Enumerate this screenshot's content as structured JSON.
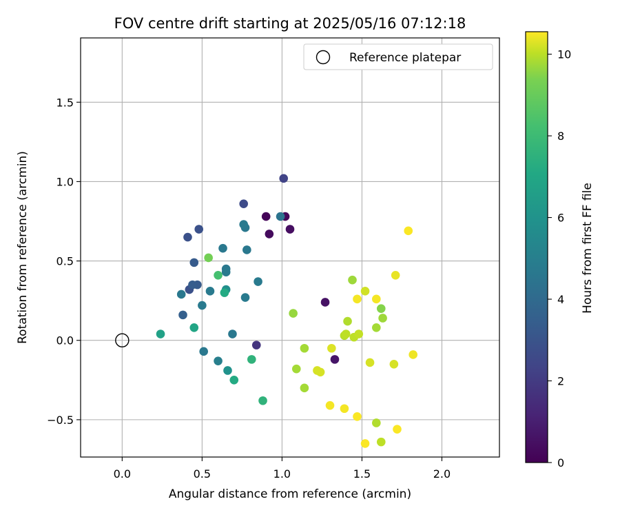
{
  "chart_data": {
    "type": "scatter",
    "title": "FOV centre drift starting at 2025/05/16 07:12:18",
    "xlabel": "Angular distance from reference (arcmin)",
    "ylabel": "Rotation from reference (arcmin)",
    "xlim": [
      -0.26,
      2.36
    ],
    "ylim": [
      -0.735,
      1.905
    ],
    "xticks": [
      0.0,
      0.5,
      1.0,
      1.5,
      2.0
    ],
    "xtick_labels": [
      "0.0",
      "0.5",
      "1.0",
      "1.5",
      "2.0"
    ],
    "yticks": [
      -0.5,
      0.0,
      0.5,
      1.0,
      1.5
    ],
    "ytick_labels": [
      "−0.5",
      "0.0",
      "0.5",
      "1.0",
      "1.5"
    ],
    "grid": true,
    "legend": {
      "placement": "top-right",
      "entries": [
        "Reference platepar"
      ]
    },
    "reference_point": {
      "x": 0.0,
      "y": 0.0,
      "marker": "hollow-circle"
    },
    "colorbar": {
      "label": "Hours from first FF file",
      "min": 0,
      "max": 10.55,
      "ticks": [
        0,
        2,
        4,
        6,
        8,
        10
      ],
      "tick_labels": [
        "0",
        "2",
        "4",
        "6",
        "8",
        "10"
      ],
      "colormap": "viridis"
    },
    "points": [
      {
        "x": 0.9,
        "y": 0.78,
        "hours": 0.1
      },
      {
        "x": 1.02,
        "y": 0.78,
        "hours": 0.2
      },
      {
        "x": 0.92,
        "y": 0.67,
        "hours": 0.3
      },
      {
        "x": 1.05,
        "y": 0.7,
        "hours": 0.4
      },
      {
        "x": 1.27,
        "y": 0.24,
        "hours": 0.5
      },
      {
        "x": 1.33,
        "y": -0.12,
        "hours": 0.6
      },
      {
        "x": 0.84,
        "y": -0.03,
        "hours": 1.6
      },
      {
        "x": 1.01,
        "y": 1.02,
        "hours": 2.1
      },
      {
        "x": 0.76,
        "y": 0.86,
        "hours": 2.4
      },
      {
        "x": 0.48,
        "y": 0.7,
        "hours": 2.6
      },
      {
        "x": 0.41,
        "y": 0.65,
        "hours": 2.6
      },
      {
        "x": 0.42,
        "y": 0.32,
        "hours": 2.6
      },
      {
        "x": 0.45,
        "y": 0.49,
        "hours": 3.0
      },
      {
        "x": 0.47,
        "y": 0.35,
        "hours": 3.0
      },
      {
        "x": 0.44,
        "y": 0.35,
        "hours": 3.1
      },
      {
        "x": 0.38,
        "y": 0.16,
        "hours": 3.2
      },
      {
        "x": 0.99,
        "y": 0.78,
        "hours": 4.0
      },
      {
        "x": 0.77,
        "y": 0.71,
        "hours": 4.2
      },
      {
        "x": 0.76,
        "y": 0.73,
        "hours": 4.3
      },
      {
        "x": 0.78,
        "y": 0.57,
        "hours": 4.2
      },
      {
        "x": 0.63,
        "y": 0.58,
        "hours": 4.2
      },
      {
        "x": 0.65,
        "y": 0.45,
        "hours": 4.2
      },
      {
        "x": 0.65,
        "y": 0.43,
        "hours": 4.3
      },
      {
        "x": 0.85,
        "y": 0.37,
        "hours": 4.3
      },
      {
        "x": 0.77,
        "y": 0.27,
        "hours": 4.3
      },
      {
        "x": 0.55,
        "y": 0.31,
        "hours": 4.3
      },
      {
        "x": 0.5,
        "y": 0.22,
        "hours": 4.3
      },
      {
        "x": 0.37,
        "y": 0.29,
        "hours": 4.2
      },
      {
        "x": 0.69,
        "y": 0.04,
        "hours": 4.2
      },
      {
        "x": 0.51,
        "y": -0.07,
        "hours": 4.2
      },
      {
        "x": 0.6,
        "y": -0.13,
        "hours": 4.5
      },
      {
        "x": 0.65,
        "y": 0.32,
        "hours": 5.2
      },
      {
        "x": 0.66,
        "y": -0.19,
        "hours": 5.3
      },
      {
        "x": 0.24,
        "y": 0.04,
        "hours": 6.0
      },
      {
        "x": 0.45,
        "y": 0.08,
        "hours": 6.2
      },
      {
        "x": 0.64,
        "y": 0.3,
        "hours": 6.4
      },
      {
        "x": 0.7,
        "y": -0.25,
        "hours": 6.4
      },
      {
        "x": 0.81,
        "y": -0.12,
        "hours": 6.8
      },
      {
        "x": 0.88,
        "y": -0.38,
        "hours": 6.8
      },
      {
        "x": 0.6,
        "y": 0.41,
        "hours": 7.4
      },
      {
        "x": 0.54,
        "y": 0.52,
        "hours": 8.3
      },
      {
        "x": 1.07,
        "y": 0.17,
        "hours": 8.9
      },
      {
        "x": 1.09,
        "y": -0.18,
        "hours": 9.1
      },
      {
        "x": 1.14,
        "y": -0.05,
        "hours": 9.1
      },
      {
        "x": 1.14,
        "y": -0.3,
        "hours": 9.1
      },
      {
        "x": 1.44,
        "y": 0.38,
        "hours": 9.0
      },
      {
        "x": 1.62,
        "y": 0.2,
        "hours": 8.6
      },
      {
        "x": 1.63,
        "y": 0.14,
        "hours": 9.0
      },
      {
        "x": 1.59,
        "y": 0.08,
        "hours": 9.1
      },
      {
        "x": 1.41,
        "y": 0.12,
        "hours": 9.3
      },
      {
        "x": 1.39,
        "y": 0.03,
        "hours": 9.4
      },
      {
        "x": 1.4,
        "y": 0.04,
        "hours": 9.5
      },
      {
        "x": 1.45,
        "y": 0.02,
        "hours": 9.5
      },
      {
        "x": 1.48,
        "y": 0.04,
        "hours": 9.6
      },
      {
        "x": 1.59,
        "y": -0.52,
        "hours": 9.3
      },
      {
        "x": 1.62,
        "y": -0.64,
        "hours": 9.5
      },
      {
        "x": 1.22,
        "y": -0.19,
        "hours": 9.9
      },
      {
        "x": 1.24,
        "y": -0.2,
        "hours": 9.9
      },
      {
        "x": 1.31,
        "y": -0.05,
        "hours": 10.0
      },
      {
        "x": 1.52,
        "y": 0.31,
        "hours": 9.8
      },
      {
        "x": 1.55,
        "y": -0.14,
        "hours": 9.9
      },
      {
        "x": 1.7,
        "y": -0.15,
        "hours": 9.9
      },
      {
        "x": 1.71,
        "y": 0.41,
        "hours": 10.2
      },
      {
        "x": 1.79,
        "y": 0.69,
        "hours": 10.5
      },
      {
        "x": 1.47,
        "y": 0.26,
        "hours": 10.4
      },
      {
        "x": 1.59,
        "y": 0.26,
        "hours": 10.4
      },
      {
        "x": 1.82,
        "y": -0.09,
        "hours": 10.3
      },
      {
        "x": 1.3,
        "y": -0.41,
        "hours": 10.4
      },
      {
        "x": 1.39,
        "y": -0.43,
        "hours": 10.4
      },
      {
        "x": 1.47,
        "y": -0.48,
        "hours": 10.5
      },
      {
        "x": 1.52,
        "y": -0.65,
        "hours": 10.5
      },
      {
        "x": 1.72,
        "y": -0.56,
        "hours": 10.5
      }
    ]
  }
}
